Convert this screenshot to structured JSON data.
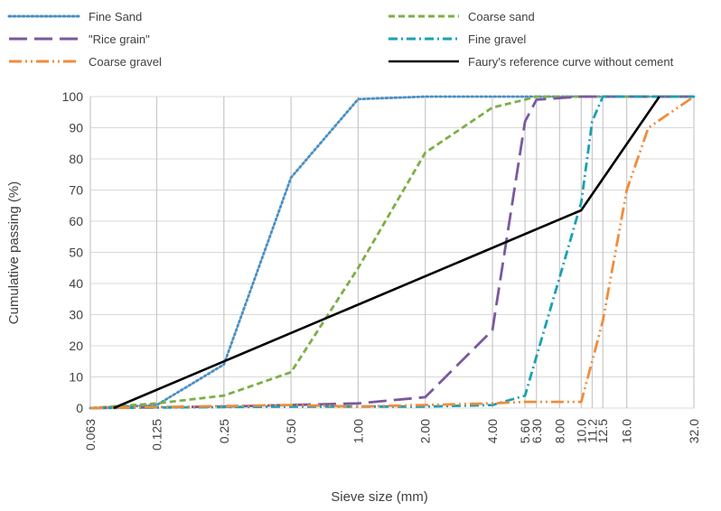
{
  "chart_data": {
    "type": "line",
    "title": "",
    "xlabel": "Sieve size (mm)",
    "ylabel": "Cumulative passing (%)",
    "ylim": [
      0,
      100
    ],
    "yticks": [
      0,
      10,
      20,
      30,
      40,
      50,
      60,
      70,
      80,
      90,
      100
    ],
    "xscale": "log",
    "xlim": [
      0.063,
      32
    ],
    "x_tick_values": [
      0.063,
      0.125,
      0.25,
      0.5,
      1,
      2,
      4,
      5.6,
      6.3,
      8,
      10,
      11.2,
      12.5,
      16,
      32
    ],
    "x_tick_labels": [
      "0.063",
      "0.125",
      "0.25",
      "0.50",
      "1.00",
      "2.00",
      "4.00",
      "5.60",
      "6.30",
      "8.00",
      "10.0",
      "11.2",
      "12.5",
      "16.0",
      "32.0"
    ],
    "grid": "vertical-at-sieves-and-horizontal-at-yticks",
    "legend_position": "top",
    "series": [
      {
        "name": "Fine Sand",
        "color": "#4a8fc4",
        "style": "dotted",
        "x": [
          0.063,
          0.125,
          0.25,
          0.5,
          1,
          2,
          4,
          5.6,
          32
        ],
        "y": [
          0,
          1,
          14,
          74,
          99.2,
          100,
          100,
          100,
          100
        ]
      },
      {
        "name": "Coarse sand",
        "color": "#7daf45",
        "style": "dashed",
        "x": [
          0.063,
          0.125,
          0.25,
          0.5,
          1,
          2,
          4,
          5.6,
          6.3,
          32
        ],
        "y": [
          0,
          1.5,
          4,
          11.5,
          45,
          82,
          96.5,
          99,
          100,
          100
        ]
      },
      {
        "name": "\"Rice grain\"",
        "color": "#7a58a0",
        "style": "long-dash",
        "x": [
          0.063,
          0.25,
          0.5,
          1,
          2,
          4,
          5.6,
          6.3,
          10,
          32
        ],
        "y": [
          0,
          0.5,
          1,
          1.5,
          3.5,
          25,
          92,
          99,
          100,
          100
        ]
      },
      {
        "name": "Fine gravel",
        "color": "#1ba0b4",
        "style": "dash-dot",
        "x": [
          0.063,
          0.5,
          1,
          2,
          4,
          5.6,
          8,
          10,
          11.2,
          12.5,
          32
        ],
        "y": [
          0,
          0.5,
          0.5,
          0.5,
          1,
          4,
          42,
          66,
          92,
          100,
          100
        ]
      },
      {
        "name": "Coarse gravel",
        "color": "#f08c3c",
        "style": "dash-dot-dot",
        "x": [
          0.063,
          0.5,
          1,
          2,
          4,
          5.6,
          6.3,
          10,
          11.2,
          12.5,
          16,
          20,
          32
        ],
        "y": [
          0,
          1,
          0.5,
          1,
          1.5,
          2,
          2,
          2,
          15,
          28,
          70,
          90,
          100
        ]
      },
      {
        "name": "Faury's reference curve without cement",
        "color": "#000000",
        "style": "solid",
        "x": [
          0.08,
          10,
          22.4
        ],
        "y": [
          0,
          63.5,
          100
        ]
      }
    ]
  }
}
